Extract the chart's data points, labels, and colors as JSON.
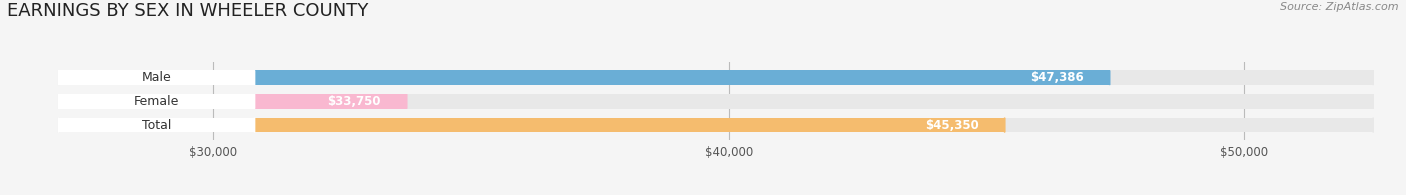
{
  "title": "EARNINGS BY SEX IN WHEELER COUNTY",
  "source": "Source: ZipAtlas.com",
  "categories": [
    "Male",
    "Female",
    "Total"
  ],
  "values": [
    47386,
    33750,
    45350
  ],
  "bar_colors": [
    "#6aaed6",
    "#f9b8d0",
    "#f5bc6e"
  ],
  "track_color": "#e8e8e8",
  "value_labels": [
    "$47,386",
    "$33,750",
    "$45,350"
  ],
  "x_ticks": [
    30000,
    40000,
    50000
  ],
  "x_tick_labels": [
    "$30,000",
    "$40,000",
    "$50,000"
  ],
  "xlim_min": 27000,
  "xlim_max": 52500,
  "background_color": "#f5f5f5",
  "title_fontsize": 13,
  "source_fontsize": 8,
  "figsize": [
    14.06,
    1.95
  ],
  "dpi": 100
}
